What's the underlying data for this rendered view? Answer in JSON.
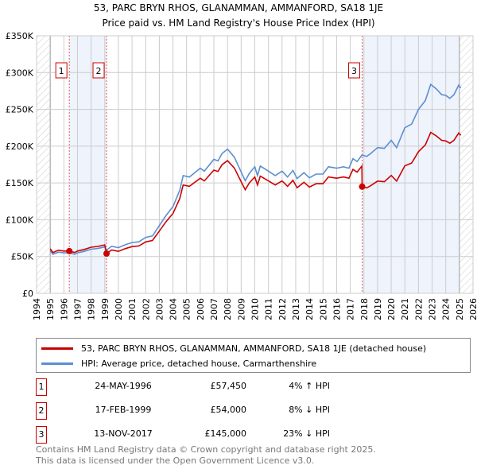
{
  "chart_data": {
    "type": "line",
    "title": "53, PARC BRYN RHOS, GLANAMMAN, AMMANFORD, SA18 1JE",
    "subtitle": "Price paid vs. HM Land Registry's House Price Index (HPI)",
    "xlim": [
      1994,
      2026
    ],
    "ylim": [
      0,
      350000
    ],
    "x_ticks": [
      "1994",
      "1995",
      "1996",
      "1997",
      "1998",
      "1999",
      "2000",
      "2001",
      "2002",
      "2003",
      "2004",
      "2005",
      "2006",
      "2007",
      "2008",
      "2009",
      "2010",
      "2011",
      "2012",
      "2013",
      "2014",
      "2015",
      "2016",
      "2017",
      "2018",
      "2019",
      "2020",
      "2021",
      "2022",
      "2023",
      "2024",
      "2025",
      "2026"
    ],
    "y_ticks": [
      {
        "v": 0,
        "label": "£0"
      },
      {
        "v": 50000,
        "label": "£50K"
      },
      {
        "v": 100000,
        "label": "£100K"
      },
      {
        "v": 150000,
        "label": "£150K"
      },
      {
        "v": 200000,
        "label": "£200K"
      },
      {
        "v": 250000,
        "label": "£250K"
      },
      {
        "v": 300000,
        "label": "£300K"
      },
      {
        "v": 350000,
        "label": "£350K"
      }
    ],
    "grid": true,
    "series": [
      {
        "name": "53, PARC BRYN RHOS, GLANAMMAN, AMMANFORD, SA18 1JE (detached house)",
        "color": "#cc0000",
        "x": [
          1995,
          1995.2,
          1995.6,
          1996,
          1996.4,
          1996.8,
          1997,
          1997.5,
          1998,
          1998.5,
          1999.0,
          1999.13,
          1999.5,
          2000,
          2000.5,
          2001,
          2001.5,
          2002,
          2002.5,
          2003,
          2003.5,
          2004,
          2004.5,
          2004.75,
          2005.2,
          2006,
          2006.3,
          2007,
          2007.3,
          2007.6,
          2008,
          2008.5,
          2009,
          2009.3,
          2009.6,
          2010,
          2010.2,
          2010.4,
          2011,
          2011.5,
          2012,
          2012.4,
          2012.8,
          2013.1,
          2013.6,
          2014,
          2014.5,
          2015,
          2015.4,
          2016,
          2016.5,
          2016.9,
          2017.2,
          2017.5,
          2017.85,
          2017.87,
          2018.2,
          2018.5,
          2019,
          2019.5,
          2020,
          2020.4,
          2021,
          2021.5,
          2022,
          2022.5,
          2022.9,
          2023.3,
          2023.7,
          2024,
          2024.3,
          2024.6,
          2024.95,
          2025.1
        ],
        "y": [
          60.6,
          55.4,
          58.5,
          57.5,
          57.5,
          55.4,
          57.5,
          59.6,
          62.7,
          63.7,
          65.8,
          54,
          58.9,
          57,
          60.7,
          63.5,
          64.4,
          69.9,
          71.8,
          84.6,
          97.5,
          108.6,
          128.8,
          147.2,
          145.4,
          156.4,
          152.7,
          167.4,
          165.6,
          174.8,
          180.3,
          170.2,
          151.8,
          140.8,
          150,
          158.2,
          147.2,
          159.2,
          152.7,
          147.2,
          152.7,
          145.4,
          153.6,
          143.5,
          150.9,
          144.4,
          149,
          149,
          158.2,
          156.4,
          158.2,
          156.4,
          168.4,
          164.7,
          173,
          145,
          143.2,
          146.3,
          152.5,
          151.7,
          160.2,
          152.5,
          173.3,
          177.1,
          192.5,
          201.7,
          218.7,
          214,
          207.9,
          207.1,
          204,
          207.9,
          217.9,
          214.8
        ],
        "y_unit": "£K"
      },
      {
        "name": "HPI: Average price, detached house, Carmarthenshire",
        "color": "#5b8fd0",
        "x": [
          1995,
          1995.2,
          1995.6,
          1996,
          1996.4,
          1996.8,
          1997,
          1997.5,
          1998,
          1998.5,
          1999.0,
          1999.13,
          1999.5,
          2000,
          2000.5,
          2001,
          2001.5,
          2002,
          2002.5,
          2003,
          2003.5,
          2004,
          2004.5,
          2004.75,
          2005.2,
          2006,
          2006.3,
          2007,
          2007.3,
          2007.6,
          2008,
          2008.5,
          2009,
          2009.3,
          2009.6,
          2010,
          2010.2,
          2010.4,
          2011,
          2011.5,
          2012,
          2012.4,
          2012.8,
          2013.1,
          2013.6,
          2014,
          2014.5,
          2015,
          2015.4,
          2016,
          2016.5,
          2016.9,
          2017.2,
          2017.5,
          2017.85,
          2017.87,
          2018.2,
          2018.5,
          2019,
          2019.5,
          2020,
          2020.4,
          2021,
          2021.5,
          2022,
          2022.5,
          2022.9,
          2023.3,
          2023.7,
          2024,
          2024.3,
          2024.6,
          2024.95,
          2025.1
        ],
        "y": [
          58,
          53,
          56,
          55,
          55,
          53,
          55,
          57,
          60,
          61,
          63,
          58.7,
          64,
          62,
          66,
          69,
          70,
          76,
          78,
          92,
          106,
          118,
          140,
          160,
          158,
          170,
          166,
          182,
          180,
          190,
          196,
          185,
          165,
          153,
          163,
          172,
          160,
          173,
          166,
          160,
          166,
          158,
          167,
          156,
          164,
          157,
          162,
          162,
          172,
          170,
          172,
          170,
          183,
          179,
          188,
          188,
          186,
          190,
          198,
          197,
          208,
          198,
          225,
          230,
          250,
          262,
          284,
          278,
          270,
          269,
          265,
          270,
          283,
          279
        ],
        "y_unit": "£K"
      }
    ],
    "sales": [
      {
        "id": "1",
        "x": 1996.4,
        "y": 57.45
      },
      {
        "id": "2",
        "x": 1999.13,
        "y": 54
      },
      {
        "id": "3",
        "x": 2017.87,
        "y": 145
      }
    ],
    "shaded": [
      [
        1996.4,
        1999.13
      ],
      [
        2017.87,
        2025.0
      ]
    ],
    "hatched": [
      [
        1994,
        1995
      ],
      [
        2025,
        2026
      ]
    ]
  },
  "legend": {
    "red": "53, PARC BRYN RHOS, GLANAMMAN, AMMANFORD, SA18 1JE (detached house)",
    "blue": "HPI: Average price, detached house, Carmarthenshire"
  },
  "sales_table": [
    {
      "num": "1",
      "date": "24-MAY-1996",
      "price": "£57,450",
      "hpi": "4% ↑ HPI"
    },
    {
      "num": "2",
      "date": "17-FEB-1999",
      "price": "£54,000",
      "hpi": "8% ↓ HPI"
    },
    {
      "num": "3",
      "date": "13-NOV-2017",
      "price": "£145,000",
      "hpi": "23% ↓ HPI"
    }
  ],
  "footer": {
    "line1": "Contains HM Land Registry data © Crown copyright and database right 2025.",
    "line2": "This data is licensed under the Open Government Licence v3.0."
  }
}
